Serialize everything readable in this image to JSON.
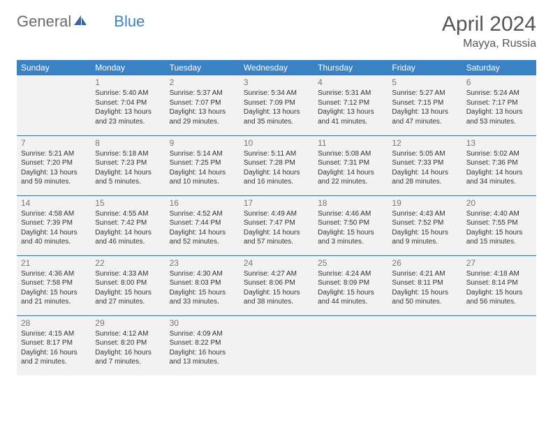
{
  "logo": {
    "word1": "General",
    "word2": "Blue"
  },
  "title": "April 2024",
  "location": "Mayya, Russia",
  "days_of_week": [
    "Sunday",
    "Monday",
    "Tuesday",
    "Wednesday",
    "Thursday",
    "Friday",
    "Saturday"
  ],
  "colors": {
    "header_bg": "#3b82c4",
    "header_text": "#ffffff",
    "cell_bg": "#f2f2f2",
    "cell_border": "#3b6a9a",
    "title_color": "#555555",
    "body_text": "#333333",
    "logo_gray": "#6a6a6a",
    "logo_blue": "#3b82c4"
  },
  "typography": {
    "title_fontsize": 30,
    "location_fontsize": 16,
    "header_fontsize": 12,
    "daynum_fontsize": 12,
    "cell_fontsize": 10
  },
  "weeks": [
    [
      null,
      {
        "n": "1",
        "sunrise": "5:40 AM",
        "sunset": "7:04 PM",
        "daylight": "13 hours and 23 minutes."
      },
      {
        "n": "2",
        "sunrise": "5:37 AM",
        "sunset": "7:07 PM",
        "daylight": "13 hours and 29 minutes."
      },
      {
        "n": "3",
        "sunrise": "5:34 AM",
        "sunset": "7:09 PM",
        "daylight": "13 hours and 35 minutes."
      },
      {
        "n": "4",
        "sunrise": "5:31 AM",
        "sunset": "7:12 PM",
        "daylight": "13 hours and 41 minutes."
      },
      {
        "n": "5",
        "sunrise": "5:27 AM",
        "sunset": "7:15 PM",
        "daylight": "13 hours and 47 minutes."
      },
      {
        "n": "6",
        "sunrise": "5:24 AM",
        "sunset": "7:17 PM",
        "daylight": "13 hours and 53 minutes."
      }
    ],
    [
      {
        "n": "7",
        "sunrise": "5:21 AM",
        "sunset": "7:20 PM",
        "daylight": "13 hours and 59 minutes."
      },
      {
        "n": "8",
        "sunrise": "5:18 AM",
        "sunset": "7:23 PM",
        "daylight": "14 hours and 5 minutes."
      },
      {
        "n": "9",
        "sunrise": "5:14 AM",
        "sunset": "7:25 PM",
        "daylight": "14 hours and 10 minutes."
      },
      {
        "n": "10",
        "sunrise": "5:11 AM",
        "sunset": "7:28 PM",
        "daylight": "14 hours and 16 minutes."
      },
      {
        "n": "11",
        "sunrise": "5:08 AM",
        "sunset": "7:31 PM",
        "daylight": "14 hours and 22 minutes."
      },
      {
        "n": "12",
        "sunrise": "5:05 AM",
        "sunset": "7:33 PM",
        "daylight": "14 hours and 28 minutes."
      },
      {
        "n": "13",
        "sunrise": "5:02 AM",
        "sunset": "7:36 PM",
        "daylight": "14 hours and 34 minutes."
      }
    ],
    [
      {
        "n": "14",
        "sunrise": "4:58 AM",
        "sunset": "7:39 PM",
        "daylight": "14 hours and 40 minutes."
      },
      {
        "n": "15",
        "sunrise": "4:55 AM",
        "sunset": "7:42 PM",
        "daylight": "14 hours and 46 minutes."
      },
      {
        "n": "16",
        "sunrise": "4:52 AM",
        "sunset": "7:44 PM",
        "daylight": "14 hours and 52 minutes."
      },
      {
        "n": "17",
        "sunrise": "4:49 AM",
        "sunset": "7:47 PM",
        "daylight": "14 hours and 57 minutes."
      },
      {
        "n": "18",
        "sunrise": "4:46 AM",
        "sunset": "7:50 PM",
        "daylight": "15 hours and 3 minutes."
      },
      {
        "n": "19",
        "sunrise": "4:43 AM",
        "sunset": "7:52 PM",
        "daylight": "15 hours and 9 minutes."
      },
      {
        "n": "20",
        "sunrise": "4:40 AM",
        "sunset": "7:55 PM",
        "daylight": "15 hours and 15 minutes."
      }
    ],
    [
      {
        "n": "21",
        "sunrise": "4:36 AM",
        "sunset": "7:58 PM",
        "daylight": "15 hours and 21 minutes."
      },
      {
        "n": "22",
        "sunrise": "4:33 AM",
        "sunset": "8:00 PM",
        "daylight": "15 hours and 27 minutes."
      },
      {
        "n": "23",
        "sunrise": "4:30 AM",
        "sunset": "8:03 PM",
        "daylight": "15 hours and 33 minutes."
      },
      {
        "n": "24",
        "sunrise": "4:27 AM",
        "sunset": "8:06 PM",
        "daylight": "15 hours and 38 minutes."
      },
      {
        "n": "25",
        "sunrise": "4:24 AM",
        "sunset": "8:09 PM",
        "daylight": "15 hours and 44 minutes."
      },
      {
        "n": "26",
        "sunrise": "4:21 AM",
        "sunset": "8:11 PM",
        "daylight": "15 hours and 50 minutes."
      },
      {
        "n": "27",
        "sunrise": "4:18 AM",
        "sunset": "8:14 PM",
        "daylight": "15 hours and 56 minutes."
      }
    ],
    [
      {
        "n": "28",
        "sunrise": "4:15 AM",
        "sunset": "8:17 PM",
        "daylight": "16 hours and 2 minutes."
      },
      {
        "n": "29",
        "sunrise": "4:12 AM",
        "sunset": "8:20 PM",
        "daylight": "16 hours and 7 minutes."
      },
      {
        "n": "30",
        "sunrise": "4:09 AM",
        "sunset": "8:22 PM",
        "daylight": "16 hours and 13 minutes."
      },
      null,
      null,
      null,
      null
    ]
  ]
}
